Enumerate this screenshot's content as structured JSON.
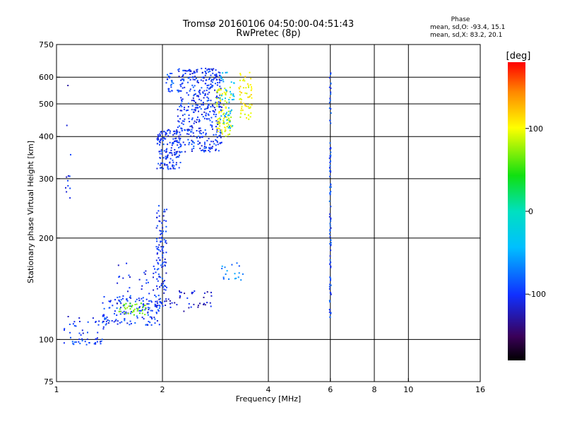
{
  "header": {
    "line1": "Tromsø 20160106 04:50:00-04:51:43",
    "line2": "RwPretec (8p)"
  },
  "phase_box": {
    "title": "Phase",
    "o_line": "mean, sd,O: -93.4, 15.1",
    "x_line": "mean, sd,X: 83.2, 20.1"
  },
  "colorbar": {
    "unit": "[deg]",
    "ticks": [
      "100",
      "0",
      "-100"
    ],
    "range": [
      -180,
      180
    ],
    "palette": "rainbow"
  },
  "chart_data": {
    "type": "scatter",
    "xlabel": "Frequency [MHz]",
    "ylabel": "Stationary phase Virtual Height [km]",
    "x_scale": "log",
    "y_scale": "log",
    "xlim": [
      1,
      16
    ],
    "ylim": [
      75,
      750
    ],
    "x_ticks": [
      1,
      2,
      4,
      6,
      8,
      10,
      16
    ],
    "x_tick_labels": [
      "1",
      "2",
      "4",
      "6",
      "8",
      "10",
      "16"
    ],
    "y_ticks": [
      75,
      100,
      200,
      300,
      400,
      500,
      600,
      750
    ],
    "y_tick_labels": [
      "75",
      "100",
      "200",
      "300",
      "400",
      "500",
      "600",
      "750"
    ],
    "grid_x": [
      2,
      4,
      6,
      8,
      10
    ],
    "grid_y": [
      100,
      200,
      300,
      400,
      500,
      600
    ],
    "grid": true,
    "series": [
      {
        "clusters": [
          {
            "fmin": 1.05,
            "fmax": 1.35,
            "hmin": 96,
            "hmax": 102,
            "n": 28,
            "phase": -95
          },
          {
            "fmin": 1.05,
            "fmax": 1.45,
            "hmin": 103,
            "hmax": 118,
            "n": 30,
            "phase": -105
          },
          {
            "fmin": 1.35,
            "fmax": 1.98,
            "hmin": 110,
            "hmax": 135,
            "n": 140,
            "phase": -95
          },
          {
            "fmin": 1.45,
            "fmax": 1.95,
            "hmin": 125,
            "hmax": 170,
            "n": 35,
            "phase": -110
          },
          {
            "fmin": 1.92,
            "fmax": 2.06,
            "hmin": 125,
            "hmax": 250,
            "n": 110,
            "phase": -100
          },
          {
            "fmin": 2.05,
            "fmax": 2.8,
            "hmin": 120,
            "hmax": 140,
            "n": 40,
            "phase": -115
          },
          {
            "fmin": 2.95,
            "fmax": 3.4,
            "hmin": 150,
            "hmax": 175,
            "n": 18,
            "phase": -70
          },
          {
            "fmin": 1.93,
            "fmax": 2.25,
            "hmin": 320,
            "hmax": 420,
            "n": 150,
            "phase": -100
          },
          {
            "fmin": 2.2,
            "fmax": 2.95,
            "hmin": 360,
            "hmax": 640,
            "n": 420,
            "phase": -100
          },
          {
            "fmin": 2.05,
            "fmax": 2.15,
            "hmin": 540,
            "hmax": 620,
            "n": 25,
            "phase": -90
          },
          {
            "fmin": 2.85,
            "fmax": 3.15,
            "hmin": 400,
            "hmax": 560,
            "n": 90,
            "phase": 95
          },
          {
            "fmin": 3.3,
            "fmax": 3.6,
            "hmin": 450,
            "hmax": 620,
            "n": 60,
            "phase": 100
          },
          {
            "fmin": 2.9,
            "fmax": 3.2,
            "hmin": 420,
            "hmax": 620,
            "n": 45,
            "phase": -45
          },
          {
            "fmin": 1.5,
            "fmax": 1.8,
            "hmin": 118,
            "hmax": 128,
            "n": 35,
            "phase": 65
          },
          {
            "fmin": 1.06,
            "fmax": 1.1,
            "hmin": 260,
            "hmax": 600,
            "n": 12,
            "phase": -110
          },
          {
            "fmin": 5.97,
            "fmax": 6.03,
            "hmin": 115,
            "hmax": 625,
            "n": 95,
            "phase": -90
          }
        ]
      }
    ]
  }
}
